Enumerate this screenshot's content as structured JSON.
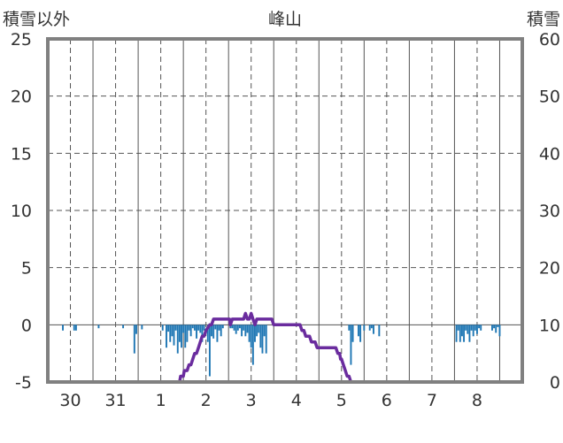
{
  "chart_data": {
    "type": "bar+line",
    "title": "峰山",
    "left_axis_label": "積雪以外",
    "right_axis_label": "積雪",
    "left_ylim": [
      -5,
      25
    ],
    "left_yticks": [
      -5,
      0,
      5,
      10,
      15,
      20,
      25
    ],
    "right_ylim": [
      0,
      60
    ],
    "right_yticks": [
      0,
      10,
      20,
      30,
      40,
      50,
      60
    ],
    "x_range_hours": [
      0,
      252
    ],
    "x_ticks": [
      {
        "label": "30",
        "hour": 12
      },
      {
        "label": "31",
        "hour": 36
      },
      {
        "label": "1",
        "hour": 60
      },
      {
        "label": "2",
        "hour": 84
      },
      {
        "label": "3",
        "hour": 108
      },
      {
        "label": "4",
        "hour": 132
      },
      {
        "label": "5",
        "hour": 156
      },
      {
        "label": "6",
        "hour": 180
      },
      {
        "label": "7",
        "hour": 204
      },
      {
        "label": "8",
        "hour": 228
      }
    ],
    "grid": true,
    "colors": {
      "bars": "#1f77b4",
      "snow_line": "#6a2c9e",
      "frame": "#808080",
      "grid": "#555555"
    },
    "series": [
      {
        "type": "bar",
        "axis": "left",
        "data": [
          [
            8,
            -0.5
          ],
          [
            14,
            -0.5
          ],
          [
            15,
            -0.5
          ],
          [
            27,
            -0.3
          ],
          [
            40,
            -0.3
          ],
          [
            46,
            -2.5
          ],
          [
            47,
            -0.8
          ],
          [
            50,
            -0.4
          ],
          [
            61,
            -0.5
          ],
          [
            63,
            -2
          ],
          [
            64,
            -0.6
          ],
          [
            65,
            -1.5
          ],
          [
            66,
            -1
          ],
          [
            67,
            -1.8
          ],
          [
            68,
            -0.5
          ],
          [
            69,
            -2.5
          ],
          [
            70,
            -1.5
          ],
          [
            71,
            -2
          ],
          [
            72,
            -0.7
          ],
          [
            73,
            -2
          ],
          [
            74,
            -1.5
          ],
          [
            75,
            -0.5
          ],
          [
            76,
            -1
          ],
          [
            77,
            -0.3
          ],
          [
            78,
            -0.5
          ],
          [
            79,
            -1.2
          ],
          [
            80,
            -0.5
          ],
          [
            81,
            -0.7
          ],
          [
            82,
            -1.5
          ],
          [
            83,
            -0.5
          ],
          [
            85,
            -1.5
          ],
          [
            86,
            -4.5
          ],
          [
            87,
            -1
          ],
          [
            88,
            -1.2
          ],
          [
            89,
            -0.4
          ],
          [
            90,
            -1.5
          ],
          [
            91,
            -0.5
          ],
          [
            92,
            -1
          ],
          [
            93,
            -0.3
          ],
          [
            97,
            -0.3
          ],
          [
            98,
            -0.3
          ],
          [
            99,
            -0.5
          ],
          [
            100,
            -0.8
          ],
          [
            101,
            -0.5
          ],
          [
            102,
            -0.3
          ],
          [
            103,
            -1
          ],
          [
            104,
            -0.5
          ],
          [
            105,
            -1
          ],
          [
            106,
            -0.7
          ],
          [
            107,
            -1.5
          ],
          [
            108,
            -2
          ],
          [
            109,
            -3.5
          ],
          [
            110,
            -1.5
          ],
          [
            111,
            -1
          ],
          [
            112,
            -0.7
          ],
          [
            113,
            -2
          ],
          [
            114,
            -2.5
          ],
          [
            115,
            -1
          ],
          [
            116,
            -2.5
          ],
          [
            160,
            -0.5
          ],
          [
            161,
            -3.5
          ],
          [
            162,
            -1.5
          ],
          [
            165,
            -1
          ],
          [
            166,
            -1.5
          ],
          [
            168,
            -0.5
          ],
          [
            171,
            -0.5
          ],
          [
            172,
            -0.3
          ],
          [
            173,
            -0.8
          ],
          [
            176,
            -1
          ],
          [
            217,
            -1.5
          ],
          [
            218,
            -0.5
          ],
          [
            219,
            -1.5
          ],
          [
            220,
            -1
          ],
          [
            221,
            -1.5
          ],
          [
            222,
            -0.5
          ],
          [
            223,
            -0.8
          ],
          [
            224,
            -1.5
          ],
          [
            225,
            -0.5
          ],
          [
            226,
            -1
          ],
          [
            227,
            -0.5
          ],
          [
            228,
            -0.8
          ],
          [
            229,
            -0.3
          ],
          [
            230,
            -0.5
          ],
          [
            236,
            -0.5
          ],
          [
            237,
            -0.3
          ],
          [
            238,
            -0.7
          ],
          [
            239,
            -0.2
          ],
          [
            240,
            -1
          ]
        ]
      },
      {
        "type": "line",
        "axis": "right",
        "data": [
          [
            0,
            0
          ],
          [
            70,
            0
          ],
          [
            70.5,
            1
          ],
          [
            72,
            1
          ],
          [
            72.5,
            2
          ],
          [
            74,
            2
          ],
          [
            75,
            3
          ],
          [
            76,
            3
          ],
          [
            77,
            4
          ],
          [
            78,
            5
          ],
          [
            79,
            5
          ],
          [
            80,
            6
          ],
          [
            81,
            7
          ],
          [
            82,
            8
          ],
          [
            83,
            8
          ],
          [
            84,
            9
          ],
          [
            86,
            10
          ],
          [
            87,
            10
          ],
          [
            88,
            11
          ],
          [
            96,
            11
          ],
          [
            96.5,
            11
          ],
          [
            97,
            10
          ],
          [
            98,
            11
          ],
          [
            104,
            11
          ],
          [
            105,
            12
          ],
          [
            106,
            11
          ],
          [
            107,
            11
          ],
          [
            108,
            12
          ],
          [
            109,
            11
          ],
          [
            110,
            10
          ],
          [
            111,
            11
          ],
          [
            119,
            11
          ],
          [
            120,
            10
          ],
          [
            130,
            10
          ],
          [
            131,
            10
          ],
          [
            134,
            10
          ],
          [
            135,
            9
          ],
          [
            136,
            9
          ],
          [
            137,
            8
          ],
          [
            139,
            8
          ],
          [
            140,
            7
          ],
          [
            142,
            7
          ],
          [
            143,
            6
          ],
          [
            152,
            6
          ],
          [
            153,
            6
          ],
          [
            154,
            5
          ],
          [
            155,
            5
          ],
          [
            155.5,
            4
          ],
          [
            156,
            4
          ],
          [
            157,
            3
          ],
          [
            158,
            2
          ],
          [
            159,
            1
          ],
          [
            160,
            1
          ],
          [
            161,
            0
          ],
          [
            252,
            0
          ]
        ]
      }
    ]
  }
}
